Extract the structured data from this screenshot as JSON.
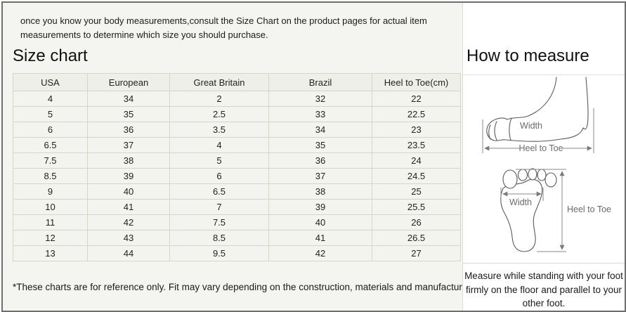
{
  "intro": {
    "text": "once you know your body measurements,consult the Size Chart on the product pages for actual item measurements to determine which size you should purchase."
  },
  "size_chart": {
    "title": "Size chart",
    "columns": [
      "USA",
      "European",
      "Great Britain",
      "Brazil",
      "Heel to Toe(cm)"
    ],
    "rows": [
      [
        "4",
        "34",
        "2",
        "32",
        "22"
      ],
      [
        "5",
        "35",
        "2.5",
        "33",
        "22.5"
      ],
      [
        "6",
        "36",
        "3.5",
        "34",
        "23"
      ],
      [
        "6.5",
        "37",
        "4",
        "35",
        "23.5"
      ],
      [
        "7.5",
        "38",
        "5",
        "36",
        "24"
      ],
      [
        "8.5",
        "39",
        "6",
        "37",
        "24.5"
      ],
      [
        "9",
        "40",
        "6.5",
        "38",
        "25"
      ],
      [
        "10",
        "41",
        "7",
        "39",
        "25.5"
      ],
      [
        "11",
        "42",
        "7.5",
        "40",
        "26"
      ],
      [
        "12",
        "43",
        "8.5",
        "41",
        "26.5"
      ],
      [
        "13",
        "44",
        "9.5",
        "42",
        "27"
      ]
    ],
    "footnote": "*These charts are for reference only. Fit may vary depending on the construction, materials and manufacturer."
  },
  "how_to_measure": {
    "title": "How to measure",
    "side_view": {
      "width_label": "Width",
      "length_label": "Heel to Toe"
    },
    "sole_view": {
      "width_label": "Width",
      "length_label": "Heel to Toe"
    },
    "note": "Measure while standing with your foot firmly on the floor and parallel to your other foot."
  },
  "colors": {
    "left_panel_bg": "#f4f4f1",
    "right_panel_bg": "#ffffff",
    "table_cell_bg": "#f3f3ef",
    "table_header_bg": "#efefe9",
    "table_border": "#d6d6c2",
    "outer_border": "#6e6e6e",
    "text": "#1a1a1a",
    "diagram_stroke": "#5a5a5a"
  }
}
